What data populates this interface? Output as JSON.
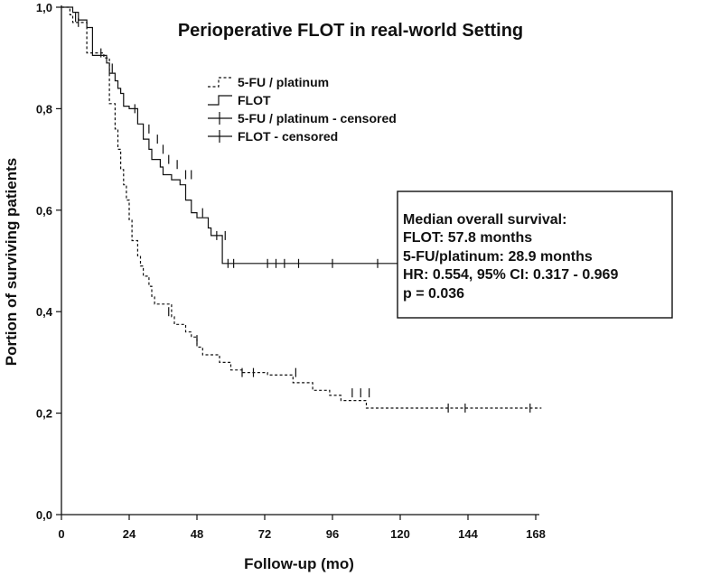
{
  "chart_data": {
    "type": "line",
    "subtype": "kaplan-meier",
    "title": "Perioperative FLOT in real-world Setting",
    "xlabel": "Follow-up (mo)",
    "ylabel": "Portion of surviving patients",
    "xlim": [
      0,
      168
    ],
    "ylim": [
      0,
      1
    ],
    "x_ticks": [
      0,
      24,
      48,
      72,
      96,
      120,
      144,
      168
    ],
    "x_tick_labels": [
      "0",
      "24",
      "48",
      "72",
      "96",
      "120",
      "144",
      "168"
    ],
    "y_ticks": [
      0,
      0.2,
      0.4,
      0.6,
      0.8,
      1.0
    ],
    "y_tick_labels": [
      "0,0",
      "0,2",
      "0,4",
      "0,6",
      "0,8",
      "1,0"
    ],
    "grid": false,
    "legend": {
      "placement": "top-center",
      "entries": [
        "5-FU / platinum",
        "FLOT",
        "5-FU / platinum - censored",
        "FLOT - censored"
      ]
    },
    "series": [
      {
        "name": "5-FU / platinum",
        "style": "dashed",
        "color": "#111111",
        "steps": [
          [
            0,
            1.0
          ],
          [
            3,
            0.985
          ],
          [
            4,
            0.97
          ],
          [
            9,
            0.91
          ],
          [
            15,
            0.9
          ],
          [
            17,
            0.81
          ],
          [
            19,
            0.76
          ],
          [
            20,
            0.72
          ],
          [
            21,
            0.68
          ],
          [
            22,
            0.65
          ],
          [
            23,
            0.62
          ],
          [
            24,
            0.58
          ],
          [
            25,
            0.54
          ],
          [
            27,
            0.51
          ],
          [
            28,
            0.49
          ],
          [
            29,
            0.47
          ],
          [
            31,
            0.45
          ],
          [
            32,
            0.43
          ],
          [
            33,
            0.415
          ],
          [
            39,
            0.39
          ],
          [
            40,
            0.375
          ],
          [
            44,
            0.36
          ],
          [
            46,
            0.35
          ],
          [
            48,
            0.33
          ],
          [
            50,
            0.315
          ],
          [
            56,
            0.3
          ],
          [
            60,
            0.285
          ],
          [
            64,
            0.28
          ],
          [
            73,
            0.275
          ],
          [
            82,
            0.26
          ],
          [
            89,
            0.245
          ],
          [
            95,
            0.235
          ],
          [
            99,
            0.225
          ],
          [
            108,
            0.21
          ],
          [
            170,
            0.21
          ]
        ],
        "censored": [
          [
            6,
            0.97
          ],
          [
            38,
            0.4
          ],
          [
            48,
            0.345
          ],
          [
            64,
            0.28
          ],
          [
            68,
            0.28
          ],
          [
            83,
            0.28
          ],
          [
            103,
            0.24
          ],
          [
            106,
            0.24
          ],
          [
            109,
            0.24
          ],
          [
            137,
            0.21
          ],
          [
            143,
            0.21
          ],
          [
            166,
            0.21
          ]
        ]
      },
      {
        "name": "FLOT",
        "style": "solid",
        "color": "#111111",
        "steps": [
          [
            0,
            1.0
          ],
          [
            4,
            0.99
          ],
          [
            6,
            0.975
          ],
          [
            9,
            0.96
          ],
          [
            11,
            0.905
          ],
          [
            16,
            0.89
          ],
          [
            17,
            0.87
          ],
          [
            19,
            0.855
          ],
          [
            20,
            0.84
          ],
          [
            21,
            0.83
          ],
          [
            22,
            0.805
          ],
          [
            24,
            0.8
          ],
          [
            27,
            0.77
          ],
          [
            29,
            0.74
          ],
          [
            31,
            0.72
          ],
          [
            32,
            0.7
          ],
          [
            35,
            0.685
          ],
          [
            36,
            0.67
          ],
          [
            39,
            0.66
          ],
          [
            42,
            0.65
          ],
          [
            44,
            0.62
          ],
          [
            46,
            0.595
          ],
          [
            48,
            0.585
          ],
          [
            52,
            0.565
          ],
          [
            53,
            0.55
          ],
          [
            57,
            0.495
          ],
          [
            119,
            0.495
          ]
        ],
        "censored": [
          [
            5,
            0.98
          ],
          [
            14,
            0.91
          ],
          [
            18,
            0.88
          ],
          [
            26,
            0.8
          ],
          [
            31,
            0.76
          ],
          [
            34,
            0.74
          ],
          [
            36,
            0.72
          ],
          [
            38,
            0.7
          ],
          [
            41,
            0.69
          ],
          [
            44,
            0.67
          ],
          [
            46,
            0.67
          ],
          [
            50,
            0.595
          ],
          [
            55,
            0.55
          ],
          [
            58,
            0.55
          ],
          [
            59,
            0.495
          ],
          [
            61,
            0.495
          ],
          [
            73,
            0.495
          ],
          [
            76,
            0.495
          ],
          [
            79,
            0.495
          ],
          [
            84,
            0.495
          ],
          [
            96,
            0.495
          ],
          [
            112,
            0.495
          ]
        ]
      }
    ],
    "annotation_lines": [
      "Median overall survival:",
      "FLOT: 57.8 months",
      "5-FU/platinum: 28.9 months",
      "HR: 0.554, 95% CI: 0.317 - 0.969",
      "p = 0.036"
    ]
  }
}
